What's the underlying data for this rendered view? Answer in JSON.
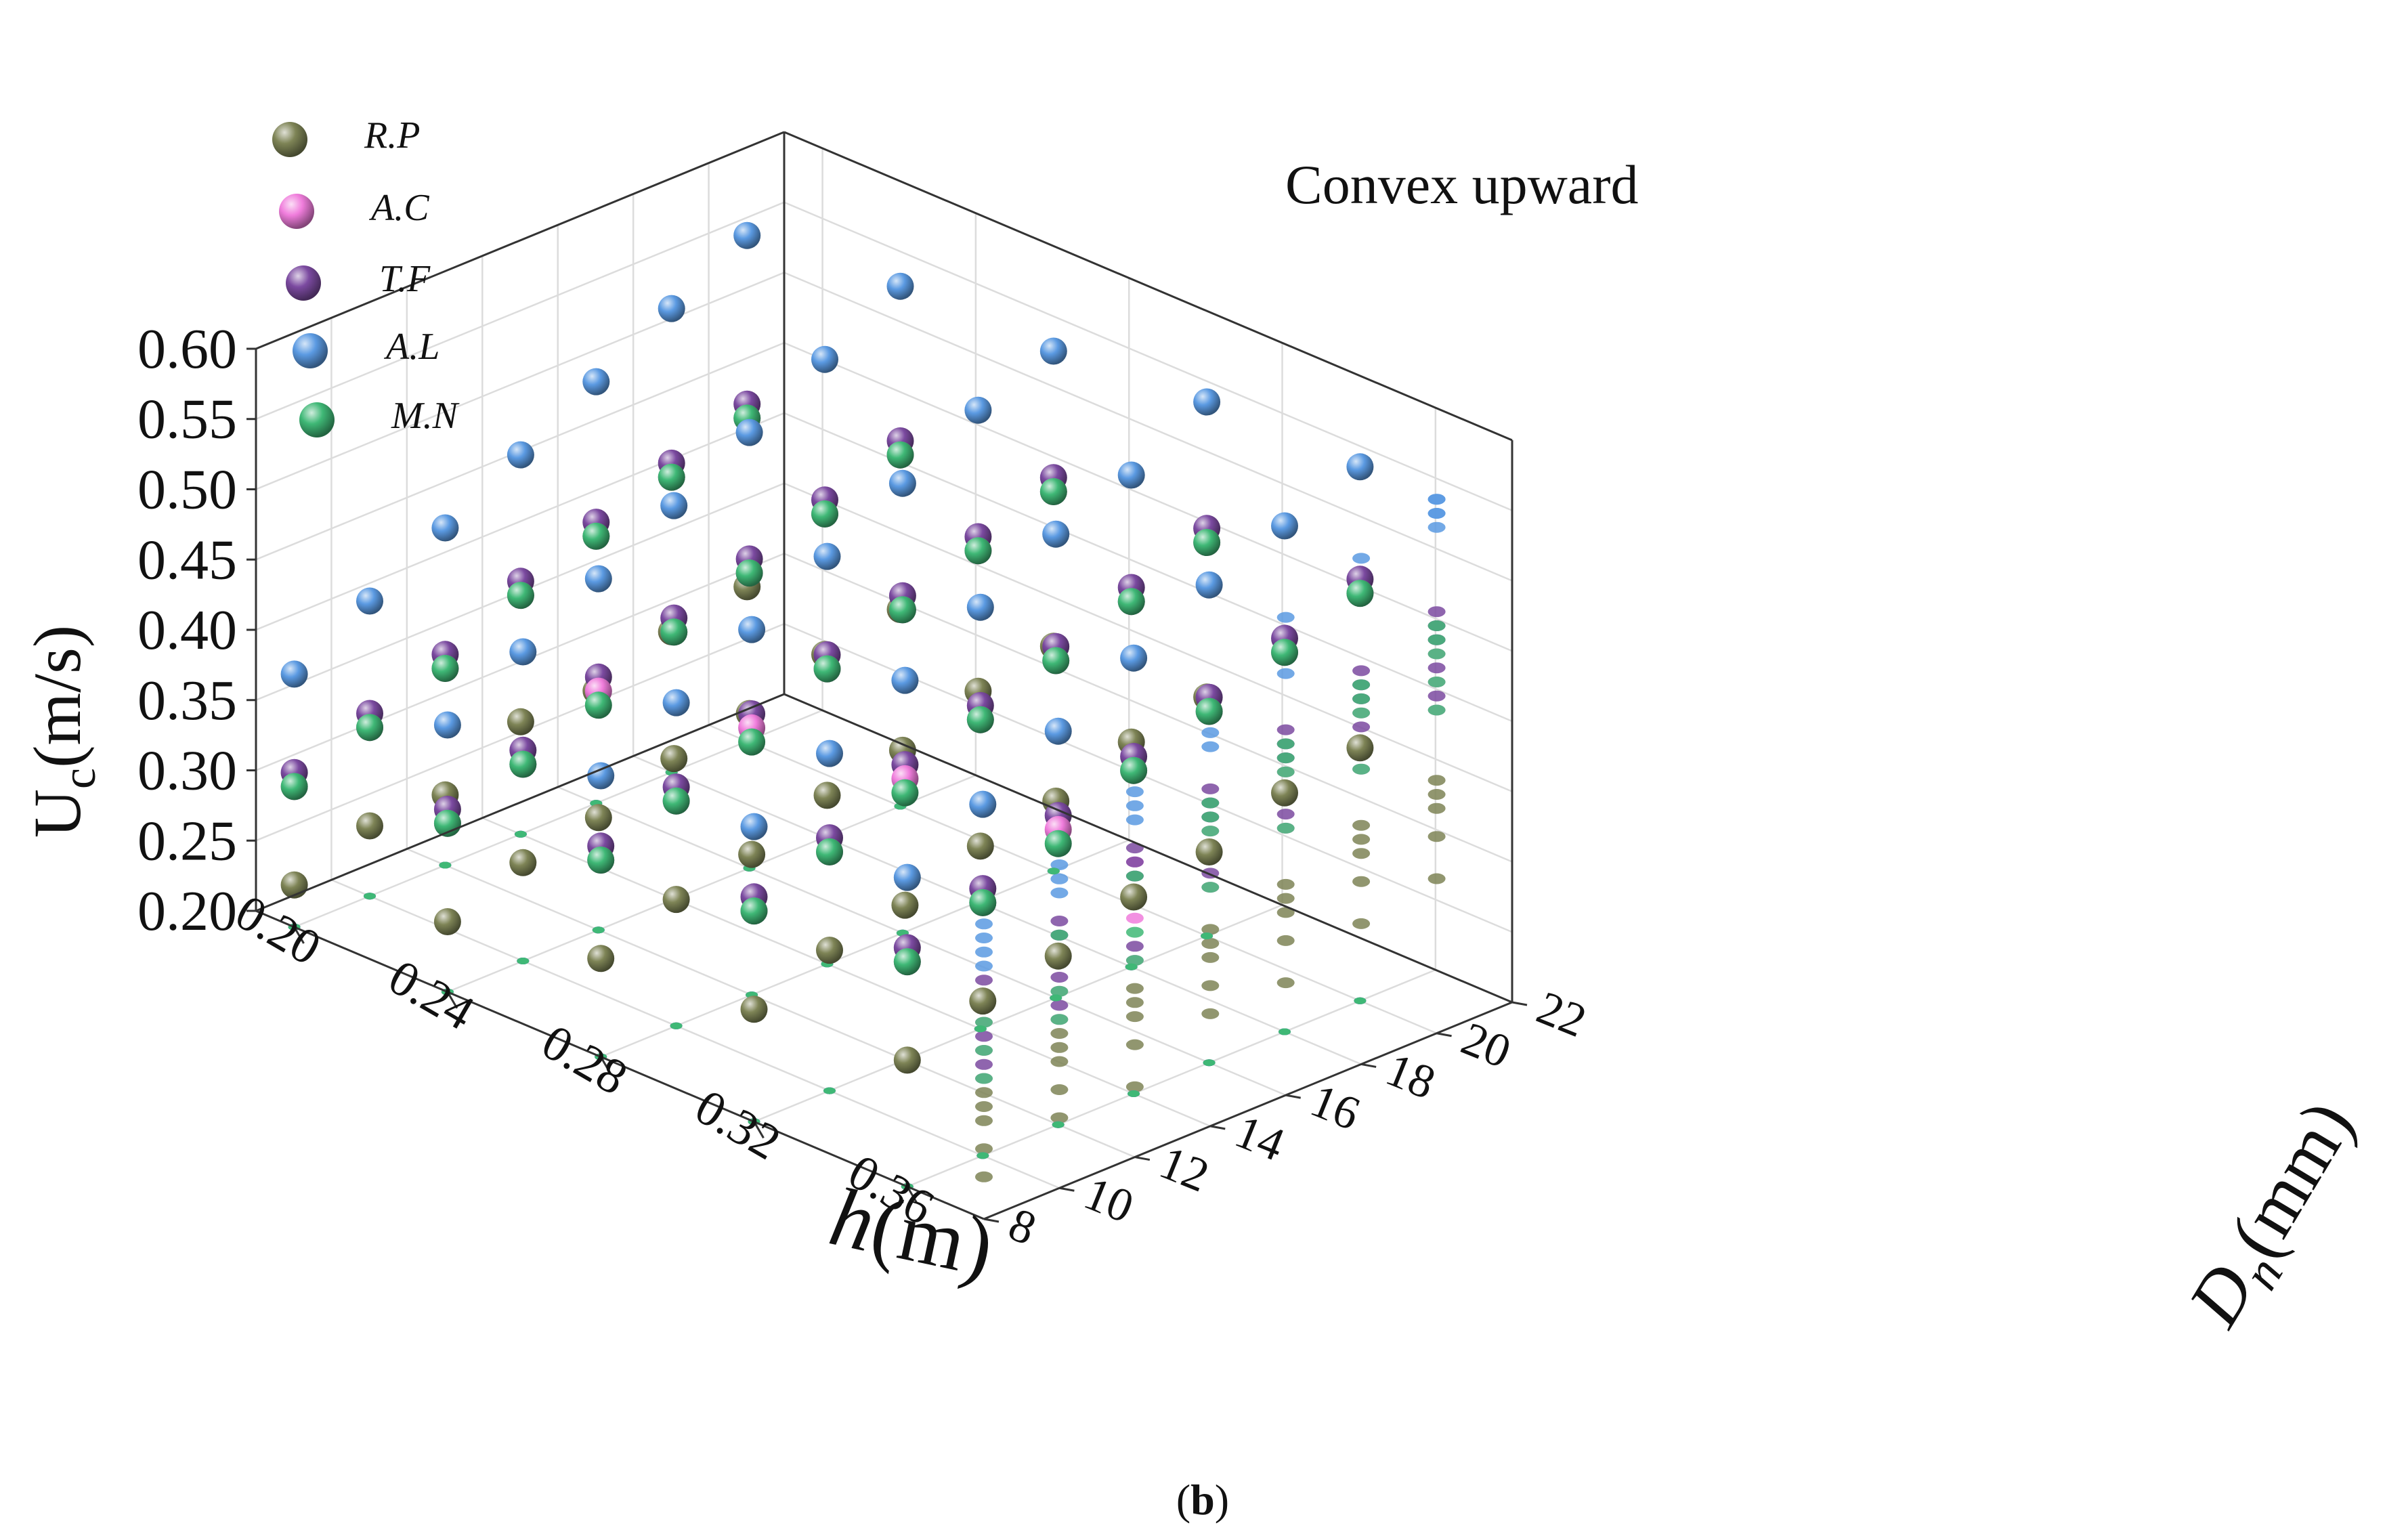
{
  "chart_data": {
    "type": "scatter3d",
    "annotation": "Convex upward",
    "caption": {
      "open": "(",
      "letter": "b",
      "close": ")"
    },
    "axes": {
      "x": {
        "label_main": "h",
        "label_unit": "(m)",
        "range": [
          0.19,
          0.38
        ],
        "ticks": [
          0.2,
          0.24,
          0.28,
          0.32,
          0.36
        ],
        "tick_labels": [
          "0.20",
          "0.24",
          "0.28",
          "0.32",
          "0.36"
        ]
      },
      "y": {
        "label_main": "D",
        "label_sub": "n",
        "label_unit": "(mm)",
        "range": [
          8,
          22
        ],
        "ticks": [
          8,
          10,
          12,
          14,
          16,
          18,
          20,
          22
        ],
        "tick_labels": [
          "8",
          "10",
          "12",
          "14",
          "16",
          "18",
          "20",
          "22"
        ]
      },
      "z": {
        "label_main": "U",
        "label_sub": "c",
        "label_unit": "(m/s)",
        "range": [
          0.2,
          0.6
        ],
        "ticks": [
          0.2,
          0.25,
          0.3,
          0.35,
          0.4,
          0.45,
          0.5,
          0.55,
          0.6
        ],
        "tick_labels": [
          "0.20",
          "0.25",
          "0.30",
          "0.35",
          "0.40",
          "0.45",
          "0.50",
          "0.55",
          "0.60"
        ]
      }
    },
    "grid": true,
    "legend_position": "top-left",
    "h_levels": [
      0.2,
      0.24,
      0.28,
      0.32,
      0.36
    ],
    "series": [
      {
        "name": "R.P",
        "color": "#7e8456",
        "dn": [
          8,
          10,
          12,
          14,
          16,
          18,
          20
        ],
        "values": [
          [
            0.23,
            0.25,
            0.25,
            0.28,
            0.28,
            0.3,
            0.31
          ],
          [
            0.25,
            0.27,
            0.28,
            0.3,
            0.31,
            0.33,
            0.34
          ],
          [
            0.27,
            0.29,
            0.3,
            0.32,
            0.33,
            0.35,
            0.36
          ],
          [
            0.28,
            0.3,
            0.31,
            0.33,
            0.34,
            0.36,
            0.37
          ],
          [
            0.29,
            0.31,
            0.32,
            0.34,
            0.35,
            0.37,
            0.38
          ]
        ]
      },
      {
        "name": "A.C",
        "color": "#f07ddc",
        "dn": [
          8,
          10,
          12,
          14,
          16,
          18,
          20
        ],
        "values": [
          [
            0.3,
            0.32,
            0.34,
            0.37,
            0.39,
            0.41,
            0.43
          ],
          [
            0.32,
            0.34,
            0.37,
            0.39,
            0.41,
            0.43,
            0.45
          ],
          [
            0.34,
            0.36,
            0.39,
            0.41,
            0.43,
            0.45,
            0.47
          ],
          [
            0.35,
            0.37,
            0.4,
            0.42,
            0.44,
            0.46,
            0.48
          ],
          [
            0.36,
            0.38,
            0.41,
            0.43,
            0.45,
            0.47,
            0.49
          ]
        ]
      },
      {
        "name": "T.F",
        "color": "#7b4aa0",
        "dn": [
          8,
          10,
          12,
          14,
          16,
          18,
          20
        ],
        "values": [
          [
            0.31,
            0.33,
            0.35,
            0.38,
            0.4,
            0.42,
            0.44
          ],
          [
            0.33,
            0.35,
            0.38,
            0.4,
            0.42,
            0.44,
            0.46
          ],
          [
            0.35,
            0.37,
            0.4,
            0.42,
            0.44,
            0.46,
            0.48
          ],
          [
            0.36,
            0.38,
            0.41,
            0.43,
            0.45,
            0.47,
            0.49
          ],
          [
            0.37,
            0.39,
            0.42,
            0.44,
            0.46,
            0.48,
            0.5
          ]
        ]
      },
      {
        "name": "A.L",
        "color": "#5b9ae2",
        "dn": [
          8,
          10,
          12,
          14,
          16,
          18,
          20
        ],
        "values": [
          [
            0.38,
            0.41,
            0.44,
            0.47,
            0.5,
            0.53,
            0.56
          ],
          [
            0.39,
            0.42,
            0.45,
            0.48,
            0.51,
            0.54,
            0.57
          ],
          [
            0.4,
            0.43,
            0.46,
            0.49,
            0.52,
            0.55,
            0.57
          ],
          [
            0.41,
            0.44,
            0.47,
            0.5,
            0.53,
            0.55,
            0.58
          ],
          [
            0.42,
            0.45,
            0.48,
            0.51,
            0.54,
            0.56,
            0.58
          ]
        ]
      },
      {
        "name": "M.N",
        "color": "#3fb876",
        "dn": [
          8,
          10,
          12,
          14,
          16,
          18,
          20
        ],
        "values": [
          [
            0.3,
            0.32,
            0.34,
            0.37,
            0.39,
            0.41,
            0.43
          ],
          [
            0.32,
            0.34,
            0.36,
            0.39,
            0.41,
            0.43,
            0.45
          ],
          [
            0.34,
            0.36,
            0.38,
            0.41,
            0.43,
            0.45,
            0.47
          ],
          [
            0.35,
            0.37,
            0.39,
            0.42,
            0.44,
            0.46,
            0.48
          ],
          [
            0.36,
            0.38,
            0.4,
            0.43,
            0.45,
            0.47,
            0.49
          ]
        ]
      }
    ]
  }
}
